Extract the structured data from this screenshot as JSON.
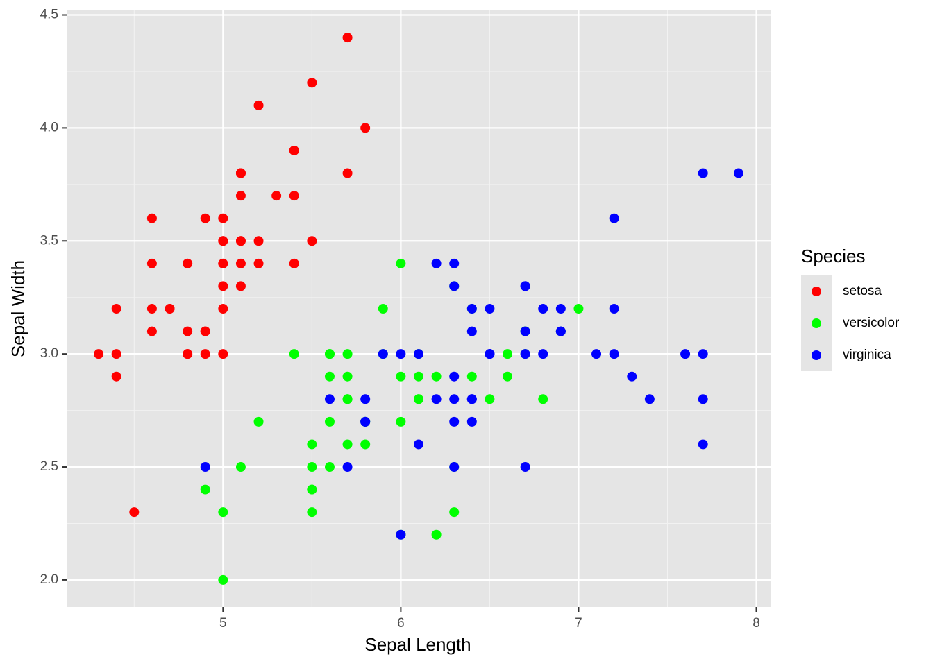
{
  "chart_data": {
    "type": "scatter",
    "x_label": "Sepal Length",
    "y_label": "Sepal Width",
    "legend_title": "Species",
    "xlim": [
      4.12,
      8.08
    ],
    "ylim": [
      1.88,
      4.52
    ],
    "xticks": [
      5,
      6,
      7,
      8
    ],
    "yticks": [
      {
        "value": 2.0,
        "label": "2.0"
      },
      2.5,
      {
        "value": 3.0,
        "label": "3.0"
      },
      3.5,
      {
        "value": 4.0,
        "label": "4.0"
      },
      4.5
    ],
    "grid": true,
    "legend_position": "right",
    "series": [
      {
        "name": "setosa",
        "color": "#ff0000",
        "x": [
          5.1,
          4.9,
          4.7,
          4.6,
          5.0,
          5.4,
          4.6,
          5.0,
          4.4,
          4.9,
          5.4,
          4.8,
          4.8,
          4.3,
          5.8,
          5.7,
          5.4,
          5.1,
          5.7,
          5.1,
          5.4,
          5.1,
          4.6,
          5.1,
          4.8,
          5.0,
          5.0,
          5.2,
          5.2,
          4.7,
          4.8,
          5.4,
          5.2,
          5.5,
          4.9,
          5.0,
          5.5,
          4.9,
          4.4,
          5.1,
          5.0,
          4.5,
          4.4,
          5.0,
          5.1,
          4.8,
          5.1,
          4.6,
          5.3,
          5.0
        ],
        "y": [
          3.5,
          3.0,
          3.2,
          3.1,
          3.6,
          3.9,
          3.4,
          3.4,
          2.9,
          3.1,
          3.7,
          3.4,
          3.0,
          3.0,
          4.0,
          4.4,
          3.9,
          3.5,
          3.8,
          3.8,
          3.4,
          3.7,
          3.6,
          3.3,
          3.4,
          3.0,
          3.4,
          3.5,
          3.4,
          3.2,
          3.1,
          3.4,
          4.1,
          4.2,
          3.1,
          3.2,
          3.5,
          3.6,
          3.0,
          3.4,
          3.5,
          2.3,
          3.2,
          3.5,
          3.8,
          3.0,
          3.8,
          3.2,
          3.7,
          3.3
        ]
      },
      {
        "name": "versicolor",
        "color": "#00ff00",
        "x": [
          7.0,
          6.4,
          6.9,
          5.5,
          6.5,
          5.7,
          6.3,
          4.9,
          6.6,
          5.2,
          5.0,
          5.9,
          6.0,
          6.1,
          5.6,
          6.7,
          5.6,
          5.8,
          6.2,
          5.6,
          5.9,
          6.1,
          6.3,
          6.1,
          6.4,
          6.6,
          6.8,
          6.7,
          6.0,
          5.7,
          5.5,
          5.5,
          5.8,
          6.0,
          5.4,
          6.0,
          6.7,
          6.3,
          5.6,
          5.5,
          5.5,
          6.1,
          5.8,
          5.0,
          5.6,
          5.7,
          5.7,
          6.2,
          5.1,
          5.7
        ],
        "y": [
          3.2,
          3.2,
          3.1,
          2.3,
          2.8,
          2.8,
          3.3,
          2.4,
          2.9,
          2.7,
          2.0,
          3.0,
          2.2,
          2.9,
          2.9,
          3.1,
          3.0,
          2.7,
          2.2,
          2.5,
          3.2,
          2.8,
          2.5,
          2.8,
          2.9,
          3.0,
          2.8,
          3.0,
          2.9,
          2.6,
          2.4,
          2.4,
          2.7,
          2.7,
          3.0,
          3.4,
          3.1,
          2.3,
          3.0,
          2.5,
          2.6,
          3.0,
          2.6,
          2.3,
          2.7,
          3.0,
          2.9,
          2.9,
          2.5,
          2.8
        ]
      },
      {
        "name": "virginica",
        "color": "#0000ff",
        "x": [
          6.3,
          5.8,
          7.1,
          6.3,
          6.5,
          7.6,
          4.9,
          7.3,
          6.7,
          7.2,
          6.5,
          6.4,
          6.8,
          5.7,
          5.8,
          6.4,
          6.5,
          7.7,
          7.7,
          6.0,
          6.9,
          5.6,
          7.7,
          6.3,
          6.7,
          7.2,
          6.2,
          6.1,
          6.4,
          7.2,
          7.4,
          7.9,
          6.4,
          6.3,
          6.1,
          7.7,
          6.3,
          6.4,
          6.0,
          6.9,
          6.7,
          6.9,
          5.8,
          6.8,
          6.7,
          6.7,
          6.3,
          6.5,
          6.2,
          5.9
        ],
        "y": [
          3.3,
          2.7,
          3.0,
          2.9,
          3.0,
          3.0,
          2.5,
          2.9,
          2.5,
          3.6,
          3.2,
          2.7,
          3.0,
          2.5,
          2.8,
          3.2,
          3.0,
          3.8,
          2.6,
          2.2,
          3.2,
          2.8,
          2.8,
          2.7,
          3.3,
          3.2,
          2.8,
          3.0,
          2.8,
          3.0,
          2.8,
          3.8,
          2.8,
          2.8,
          2.6,
          3.0,
          3.4,
          3.1,
          3.0,
          3.1,
          3.1,
          3.1,
          2.7,
          3.2,
          3.3,
          3.0,
          2.5,
          3.0,
          3.4,
          3.0
        ]
      }
    ]
  }
}
